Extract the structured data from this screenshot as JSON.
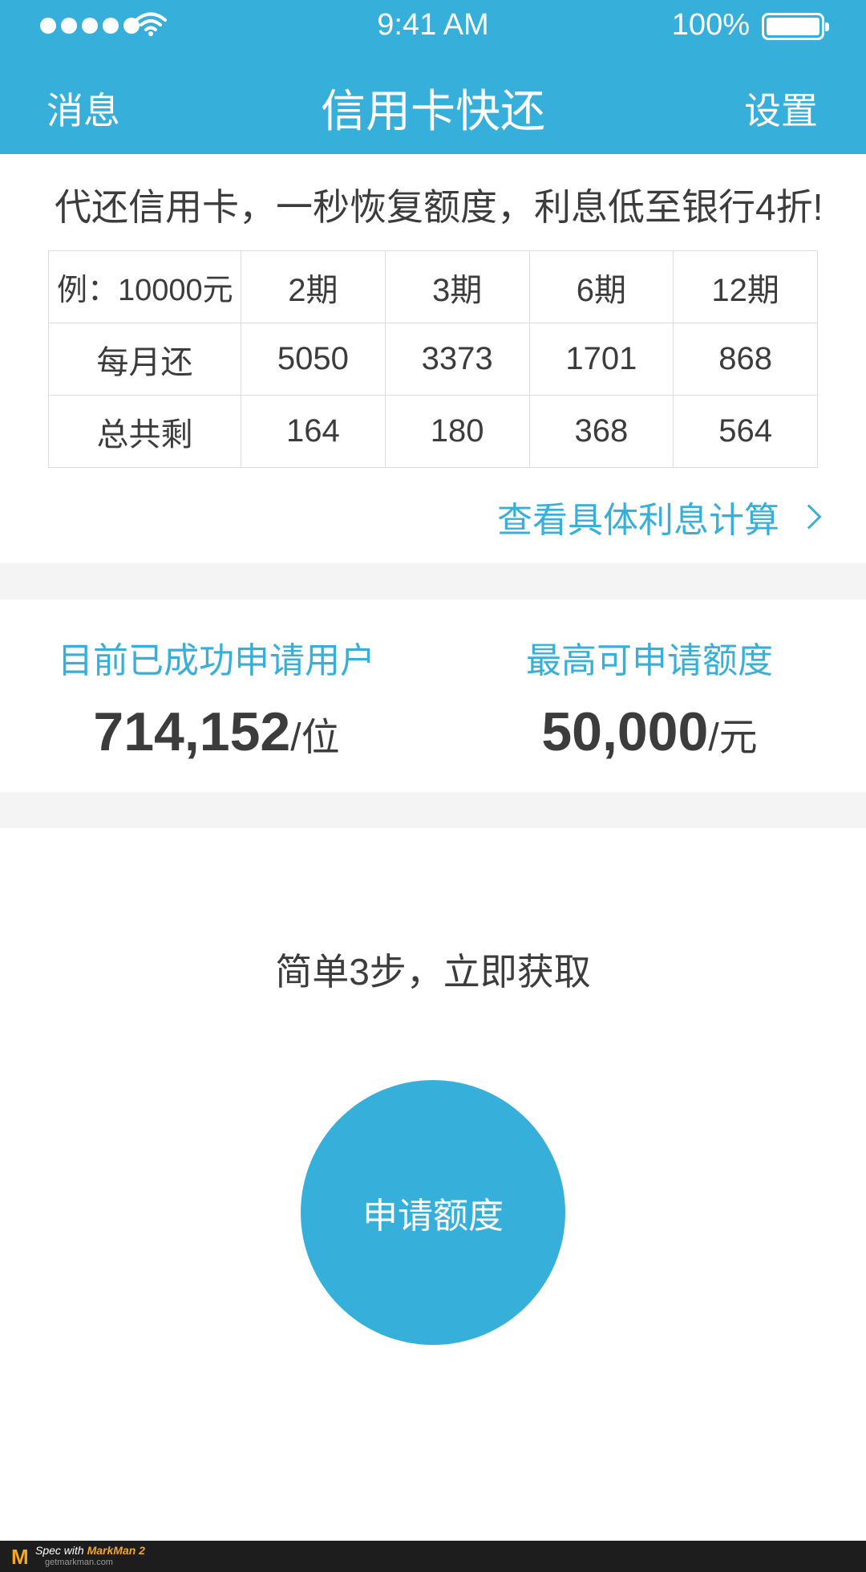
{
  "status_bar": {
    "time": "9:41 AM",
    "battery": "100%",
    "signal_icon": "signal-dots-icon",
    "wifi_icon": "wifi-icon",
    "battery_icon": "battery-icon"
  },
  "nav": {
    "left": "消息",
    "title": "信用卡快还",
    "right": "设置"
  },
  "promo": "代还信用卡，一秒恢复额度，利息低至银行4折!",
  "table": {
    "header": [
      "例：10000元",
      "2期",
      "3期",
      "6期",
      "12期"
    ],
    "rows": [
      [
        "每月还",
        "5050",
        "3373",
        "1701",
        "868"
      ],
      [
        "总共剩",
        "164",
        "180",
        "368",
        "564"
      ]
    ]
  },
  "interest_link": "查看具体利息计算",
  "stats": {
    "users_label": "目前已成功申请用户",
    "users_value": "714,152",
    "users_unit": "/位",
    "limit_label": "最高可申请额度",
    "limit_value": "50,000",
    "limit_unit": "/元"
  },
  "steps_title": "简单3步，立即获取",
  "apply_button": "申请额度",
  "footer": {
    "logo": "M",
    "brand_prefix": "Spec with ",
    "brand_name": "MarkMan 2",
    "site": "getmarkman.com"
  },
  "colors": {
    "primary": "#37afdb",
    "text": "#3c3c3c",
    "divider": "#f4f4f4"
  }
}
